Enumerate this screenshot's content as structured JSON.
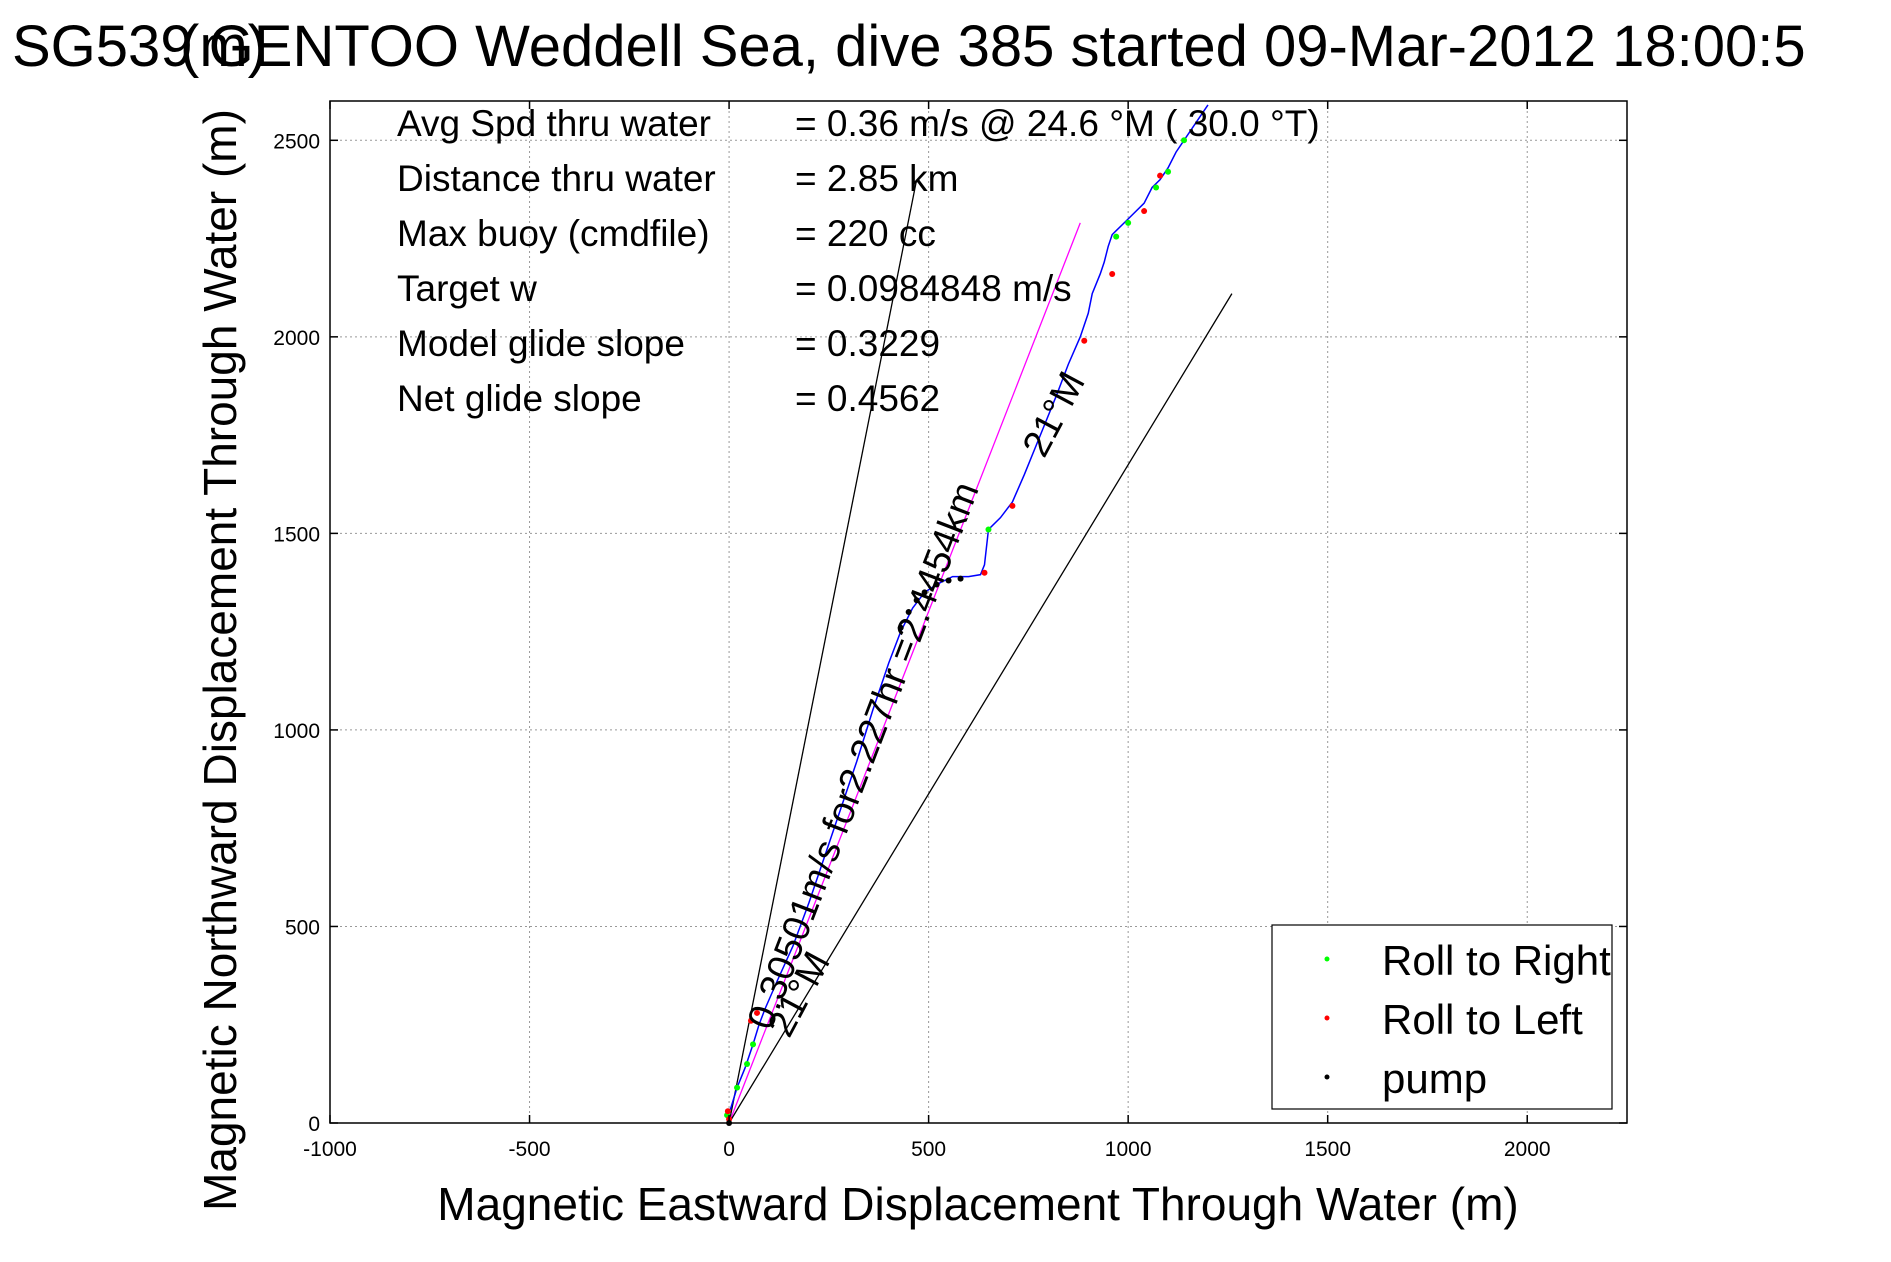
{
  "chart_data": {
    "type": "scatter",
    "title": "SG539 GENTOO Weddell Sea, dive 385 started 09-Mar-2012 18:00:5",
    "title_overlap": "(m)",
    "xlabel": "Magnetic Eastward Displacement Through Water (m)",
    "ylabel": "Magnetic Northward Displacement Through Water (m)",
    "xlim": [
      -1000,
      2250
    ],
    "ylim": [
      0,
      2600
    ],
    "xticks": [
      -1000,
      -500,
      0,
      500,
      1000,
      1500,
      2000
    ],
    "yticks": [
      0,
      500,
      1000,
      1500,
      2000,
      2500
    ],
    "xtick_labels": [
      "-1000",
      "-500",
      "0",
      "500",
      "1000",
      "1500",
      "2000"
    ],
    "ytick_labels": [
      "0",
      "500",
      "1000",
      "1500",
      "2000",
      "2500"
    ],
    "grid": true,
    "legend_position": "bottom-right",
    "stats": [
      {
        "label": "Avg Spd thru water",
        "value": "=  0.36 m/s @  24.6 °M ( 30.0 °T)"
      },
      {
        "label": "Distance thru water",
        "value": "=  2.85 km"
      },
      {
        "label": "Max buoy (cmdfile)",
        "value": "= 220 cc"
      },
      {
        "label": "Target w",
        "value": "= 0.0984848 m/s"
      },
      {
        "label": "Model glide slope",
        "value": "= 0.3229"
      },
      {
        "label": "Net glide slope",
        "value": "= 0.4562"
      }
    ],
    "annotations": {
      "course_line": "0.30501m/s for2.227hr =2.4454km",
      "cone_upper": "21°M",
      "cone_lower": "21°M"
    },
    "reference_lines": [
      {
        "name": "course",
        "color": "#ff00ff",
        "x": [
          0,
          880
        ],
        "y": [
          0,
          2290
        ]
      },
      {
        "name": "cone-left",
        "color": "#000000",
        "x": [
          0,
          470
        ],
        "y": [
          0,
          2400
        ]
      },
      {
        "name": "cone-right",
        "color": "#000000",
        "x": [
          0,
          1260
        ],
        "y": [
          0,
          2110
        ]
      }
    ],
    "track": {
      "color": "#0000ff",
      "x": [
        0,
        -5,
        5,
        20,
        40,
        60,
        75,
        90,
        120,
        160,
        200,
        240,
        280,
        320,
        360,
        400,
        430,
        460,
        490,
        520,
        560,
        600,
        630,
        640,
        650,
        680,
        710,
        740,
        780,
        820,
        850,
        880,
        900,
        910,
        930,
        940,
        950,
        960,
        970,
        990,
        1010,
        1040,
        1060,
        1080,
        1100,
        1120,
        1140,
        1160,
        1180,
        1200
      ],
      "y": [
        0,
        15,
        40,
        90,
        140,
        200,
        250,
        290,
        360,
        450,
        560,
        680,
        800,
        920,
        1050,
        1170,
        1250,
        1310,
        1350,
        1370,
        1390,
        1390,
        1395,
        1420,
        1510,
        1540,
        1580,
        1650,
        1750,
        1850,
        1930,
        2000,
        2060,
        2110,
        2160,
        2190,
        2230,
        2260,
        2270,
        2290,
        2310,
        2340,
        2380,
        2400,
        2430,
        2470,
        2500,
        2530,
        2560,
        2590
      ]
    },
    "series": [
      {
        "name": "Roll to Right",
        "color": "#00ff00",
        "x": [
          -5,
          20,
          45,
          60,
          650,
          970,
          1000,
          1070,
          1100,
          1140
        ],
        "y": [
          20,
          90,
          150,
          200,
          1510,
          2255,
          2290,
          2380,
          2420,
          2500
        ]
      },
      {
        "name": "Roll to Left",
        "color": "#ff0000",
        "x": [
          -3,
          0,
          55,
          70,
          640,
          710,
          890,
          960,
          1040,
          1080
        ],
        "y": [
          30,
          10,
          260,
          280,
          1400,
          1570,
          1990,
          2160,
          2320,
          2410
        ]
      },
      {
        "name": "pump",
        "color": "#000000",
        "x": [
          0,
          430,
          450,
          470,
          490,
          520,
          550,
          580
        ],
        "y": [
          0,
          1260,
          1300,
          1330,
          1350,
          1370,
          1380,
          1385
        ]
      }
    ]
  }
}
